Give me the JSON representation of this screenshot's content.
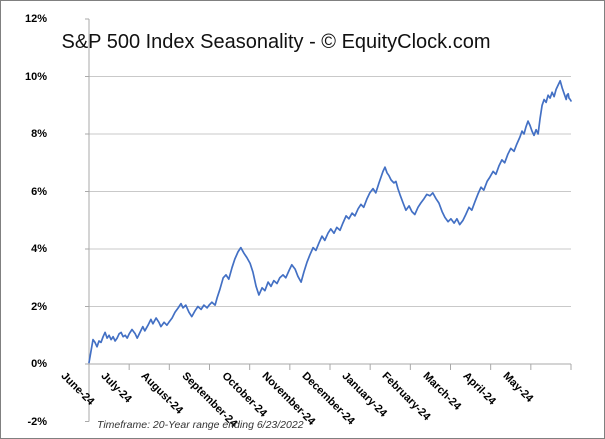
{
  "chart_data": {
    "type": "line",
    "title": "S&P 500 Index Seasonality - © EquityClock.com",
    "footnote": "Timeframe: 20-Year range ending 6/23/2022",
    "xlabel": "",
    "ylabel": "",
    "x_unit": "months since June 1 (0 = June, 11 = May)",
    "y_unit": "cumulative seasonal gain (%)",
    "xlim": [
      0,
      12
    ],
    "ylim": [
      -2,
      12
    ],
    "grid": "horizontal only",
    "legend": "none",
    "line_color": "#4370C4",
    "grid_color": "#C9C9C9",
    "axis_color": "#A9A9A9",
    "y_ticks": [
      12,
      10,
      8,
      6,
      4,
      2,
      0,
      -2
    ],
    "y_tick_labels": [
      "12%",
      "10%",
      "8%",
      "6%",
      "4%",
      "2%",
      "0%",
      "-2%"
    ],
    "gridline_values": [
      10,
      8,
      6,
      4,
      2
    ],
    "x_tick_labels": [
      "June-24",
      "July-24",
      "August-24",
      "September-24",
      "October-24",
      "November-24",
      "December-24",
      "January-24",
      "February-24",
      "March-24",
      "April-24",
      "May-24"
    ],
    "x": [
      0,
      0.05,
      0.1,
      0.15,
      0.2,
      0.25,
      0.3,
      0.35,
      0.4,
      0.45,
      0.5,
      0.55,
      0.6,
      0.65,
      0.7,
      0.75,
      0.8,
      0.85,
      0.9,
      0.95,
      1.0,
      1.07,
      1.15,
      1.2,
      1.27,
      1.34,
      1.39,
      1.47,
      1.54,
      1.59,
      1.67,
      1.74,
      1.79,
      1.87,
      1.94,
      1.99,
      2.07,
      2.14,
      2.22,
      2.29,
      2.34,
      2.41,
      2.49,
      2.56,
      2.64,
      2.71,
      2.79,
      2.86,
      2.94,
      2.99,
      3.06,
      3.14,
      3.19,
      3.26,
      3.34,
      3.41,
      3.48,
      3.56,
      3.63,
      3.71,
      3.78,
      3.86,
      3.93,
      4.01,
      4.08,
      4.16,
      4.23,
      4.31,
      4.38,
      4.46,
      4.53,
      4.6,
      4.68,
      4.75,
      4.83,
      4.9,
      4.98,
      5.05,
      5.13,
      5.2,
      5.28,
      5.35,
      5.43,
      5.5,
      5.58,
      5.65,
      5.72,
      5.8,
      5.87,
      5.95,
      6.02,
      6.1,
      6.17,
      6.25,
      6.32,
      6.4,
      6.47,
      6.55,
      6.62,
      6.7,
      6.77,
      6.84,
      6.92,
      6.99,
      7.07,
      7.14,
      7.22,
      7.27,
      7.32,
      7.37,
      7.42,
      7.47,
      7.52,
      7.59,
      7.64,
      7.69,
      7.74,
      7.82,
      7.89,
      7.97,
      8.04,
      8.11,
      8.19,
      8.26,
      8.34,
      8.41,
      8.49,
      8.56,
      8.64,
      8.71,
      8.79,
      8.86,
      8.94,
      9.01,
      9.09,
      9.16,
      9.23,
      9.31,
      9.38,
      9.46,
      9.53,
      9.61,
      9.68,
      9.76,
      9.83,
      9.91,
      9.98,
      10.06,
      10.13,
      10.21,
      10.28,
      10.35,
      10.43,
      10.5,
      10.58,
      10.65,
      10.73,
      10.78,
      10.83,
      10.88,
      10.93,
      10.98,
      11.03,
      11.08,
      11.13,
      11.18,
      11.23,
      11.28,
      11.33,
      11.38,
      11.43,
      11.48,
      11.53,
      11.58,
      11.63,
      11.68,
      11.73,
      11.78,
      11.83,
      11.88,
      11.9,
      11.93,
      11.95,
      11.98,
      12
    ],
    "y": [
      0.05,
      0.45,
      0.85,
      0.75,
      0.6,
      0.8,
      0.75,
      0.95,
      1.1,
      0.9,
      1.0,
      0.85,
      0.95,
      0.8,
      0.9,
      1.05,
      1.1,
      0.95,
      1.0,
      0.9,
      1.05,
      1.2,
      1.05,
      0.9,
      1.1,
      1.3,
      1.15,
      1.35,
      1.55,
      1.4,
      1.6,
      1.45,
      1.3,
      1.45,
      1.35,
      1.45,
      1.6,
      1.8,
      1.95,
      2.1,
      1.95,
      2.05,
      1.8,
      1.65,
      1.85,
      2.0,
      1.9,
      2.05,
      1.95,
      2.05,
      2.15,
      2.05,
      2.3,
      2.6,
      3.0,
      3.1,
      2.95,
      3.35,
      3.65,
      3.9,
      4.05,
      3.85,
      3.7,
      3.5,
      3.2,
      2.7,
      2.4,
      2.65,
      2.55,
      2.85,
      2.7,
      2.9,
      2.8,
      3.0,
      3.1,
      3.0,
      3.25,
      3.45,
      3.3,
      3.05,
      2.85,
      3.2,
      3.55,
      3.8,
      4.05,
      3.95,
      4.2,
      4.45,
      4.3,
      4.55,
      4.7,
      4.55,
      4.75,
      4.65,
      4.9,
      5.15,
      5.05,
      5.25,
      5.15,
      5.4,
      5.55,
      5.45,
      5.75,
      5.95,
      6.1,
      5.95,
      6.3,
      6.5,
      6.7,
      6.85,
      6.65,
      6.55,
      6.4,
      6.3,
      6.35,
      6.1,
      5.9,
      5.6,
      5.35,
      5.5,
      5.3,
      5.2,
      5.45,
      5.6,
      5.75,
      5.9,
      5.85,
      5.95,
      5.75,
      5.6,
      5.3,
      5.1,
      4.95,
      5.05,
      4.9,
      5.05,
      4.85,
      5.0,
      5.2,
      5.45,
      5.35,
      5.65,
      5.9,
      6.15,
      6.05,
      6.35,
      6.5,
      6.7,
      6.6,
      6.9,
      7.1,
      7.0,
      7.3,
      7.5,
      7.4,
      7.65,
      7.9,
      8.1,
      8.0,
      8.25,
      8.45,
      8.3,
      8.1,
      7.95,
      8.15,
      8.0,
      8.55,
      9.0,
      9.2,
      9.1,
      9.35,
      9.25,
      9.45,
      9.3,
      9.55,
      9.7,
      9.85,
      9.6,
      9.4,
      9.2,
      9.35,
      9.4,
      9.25,
      9.2,
      9.15
    ]
  }
}
